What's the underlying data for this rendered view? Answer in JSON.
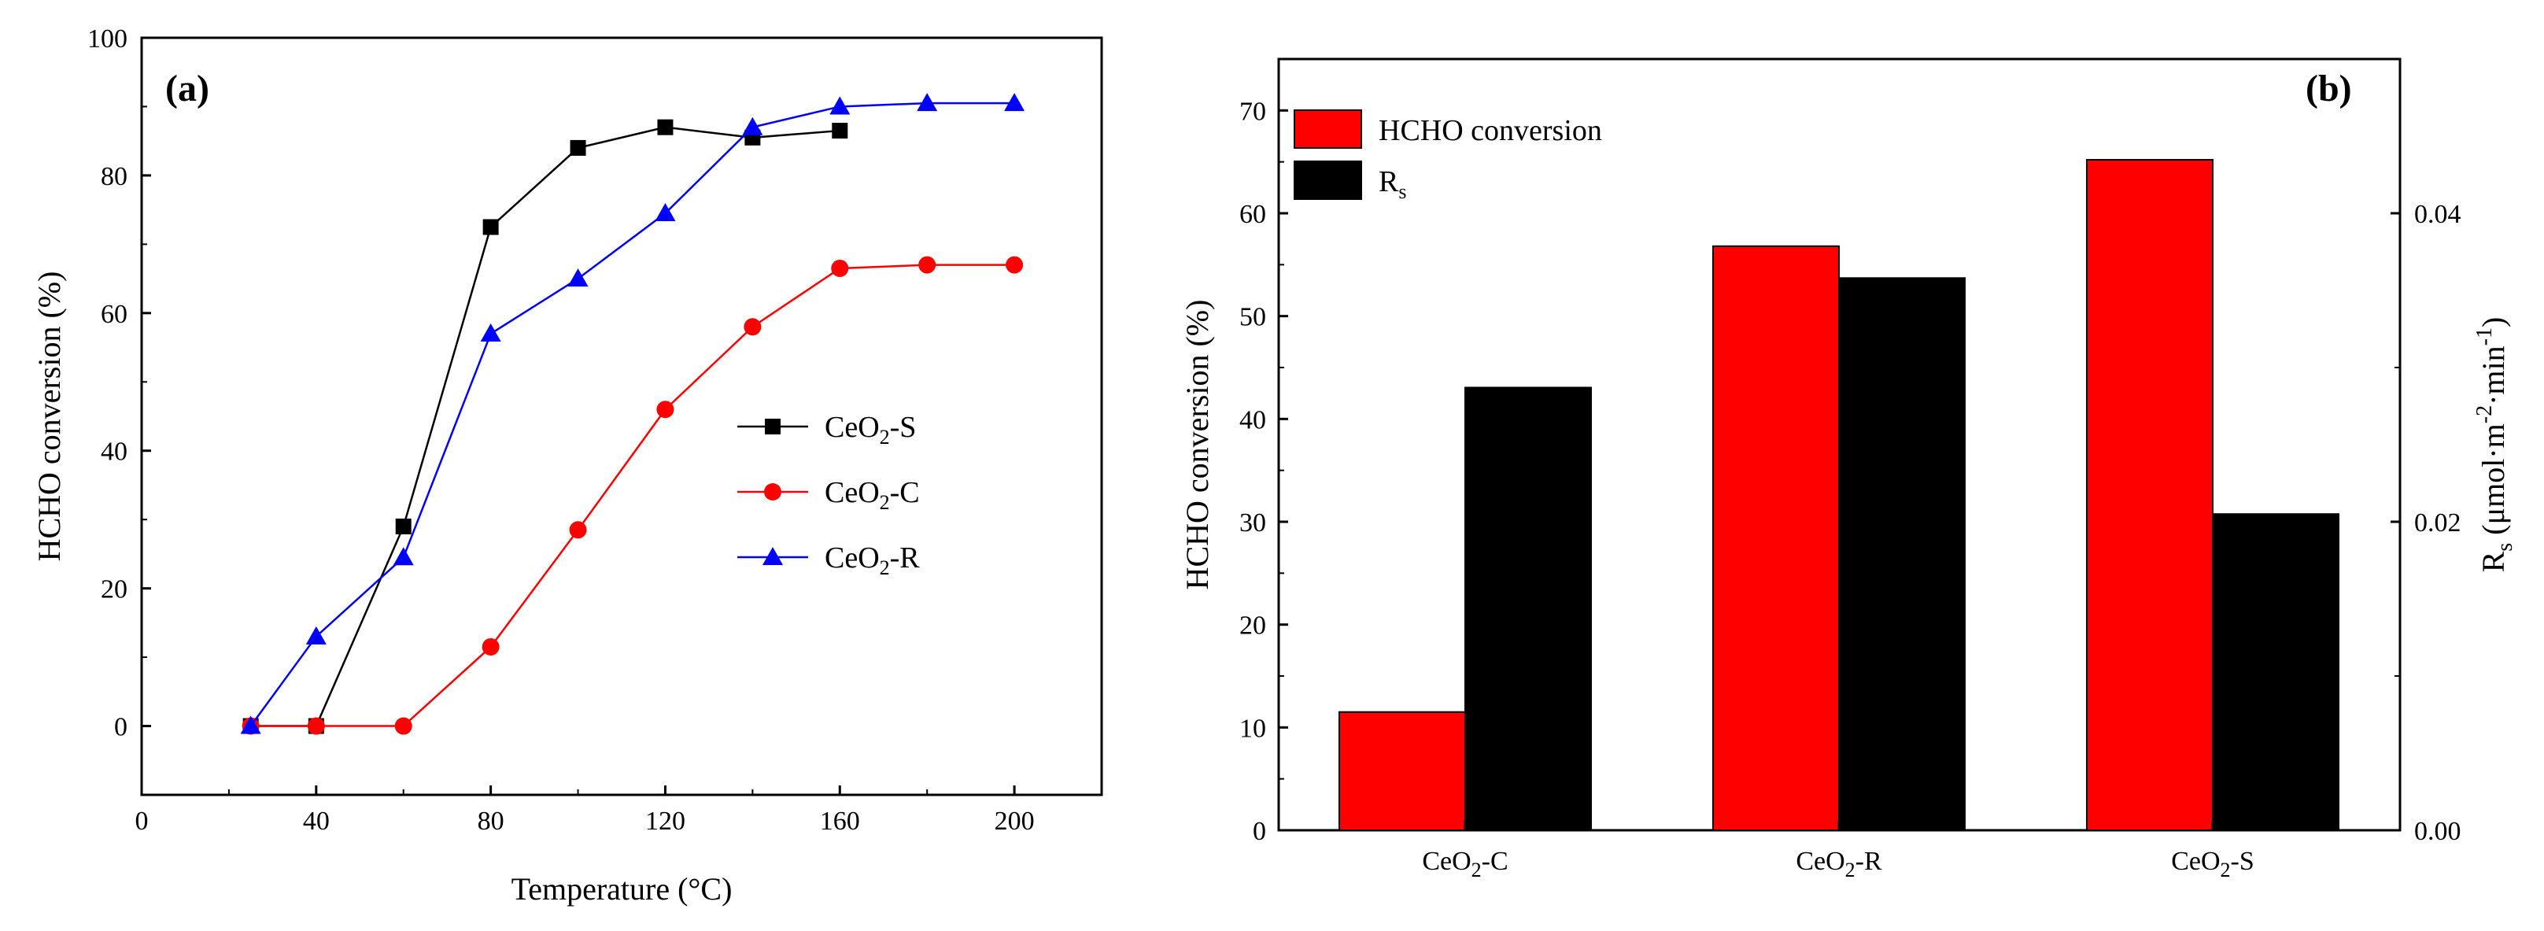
{
  "chart_data": [
    {
      "panel": "(a)",
      "type": "line",
      "xlabel": "Temperature (°C)",
      "ylabel": "HCHO conversion (%)",
      "xlim": [
        0,
        220
      ],
      "ylim": [
        -10,
        100
      ],
      "xticks": [
        "0",
        "40",
        "80",
        "120",
        "160",
        "200"
      ],
      "yticks": [
        "0",
        "20",
        "40",
        "60",
        "80",
        "100"
      ],
      "legend_position": "right-middle",
      "series": [
        {
          "name": "CeO2-S",
          "label_base": "CeO",
          "label_sub": "2",
          "label_suffix": "-S",
          "color": "#000000",
          "marker": "square",
          "x": [
            25,
            40,
            60,
            80,
            100,
            120,
            140,
            160
          ],
          "y": [
            0,
            0,
            29,
            72.5,
            84,
            87,
            85.5,
            86.5
          ]
        },
        {
          "name": "CeO2-C",
          "label_base": "CeO",
          "label_sub": "2",
          "label_suffix": "-C",
          "color": "#ff0000",
          "marker": "circle",
          "x": [
            25,
            40,
            60,
            80,
            100,
            120,
            140,
            160,
            180,
            200
          ],
          "y": [
            0,
            0,
            0,
            11.5,
            28.5,
            46,
            58,
            66.5,
            67,
            67
          ]
        },
        {
          "name": "CeO2-R",
          "label_base": "CeO",
          "label_sub": "2",
          "label_suffix": "-R",
          "color": "#0000ff",
          "marker": "triangle",
          "x": [
            25,
            40,
            60,
            80,
            100,
            120,
            140,
            160,
            180,
            200
          ],
          "y": [
            0,
            13,
            24.5,
            57,
            65,
            74.5,
            87,
            90,
            90.5,
            90.5
          ]
        }
      ]
    },
    {
      "panel": "(b)",
      "type": "bar",
      "categories": [
        {
          "base": "CeO",
          "sub": "2",
          "suffix": "-C"
        },
        {
          "base": "CeO",
          "sub": "2",
          "suffix": "-R"
        },
        {
          "base": "CeO",
          "sub": "2",
          "suffix": "-S"
        }
      ],
      "ylabel": "HCHO conversion (%)",
      "ylim": [
        0,
        75
      ],
      "yticks": [
        "0",
        "10",
        "20",
        "30",
        "40",
        "50",
        "60",
        "70"
      ],
      "y2label": {
        "base": "R",
        "sub": "s",
        "unit_open": " (μmol·m",
        "exp1": "-2",
        "unit_mid": "·min",
        "exp2": "-1",
        "unit_close": ")"
      },
      "y2lim": [
        0,
        0.05
      ],
      "y2ticks": [
        "0.00",
        "0.02",
        "0.04"
      ],
      "legend_position": "top-left",
      "series": [
        {
          "name": "HCHO conversion",
          "axis": "left",
          "color": "#ff0000",
          "values": [
            11.5,
            56.8,
            65.2
          ]
        },
        {
          "name": "Rs",
          "label_base": "R",
          "label_sub": "s",
          "axis": "right",
          "color": "#000000",
          "values": [
            0.0287,
            0.0358,
            0.0205
          ]
        }
      ]
    }
  ]
}
